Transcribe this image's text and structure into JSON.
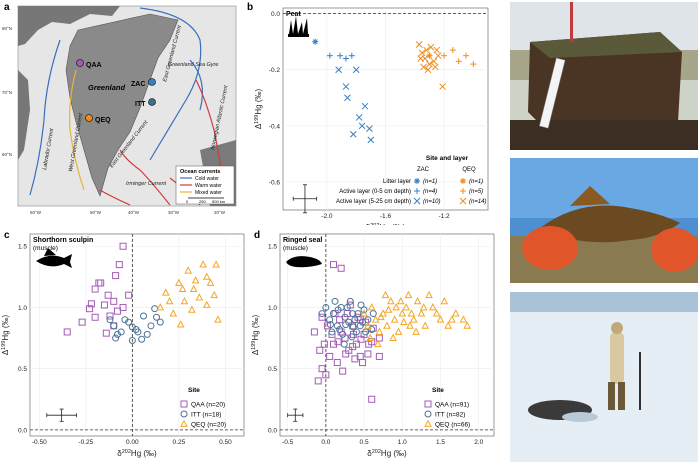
{
  "panel_labels": {
    "a": "a",
    "b": "b",
    "c": "c",
    "d": "d"
  },
  "map": {
    "region": "Greenland",
    "sites": [
      "QAA",
      "ZAC",
      "ITT",
      "QEQ"
    ],
    "currents": [
      "Labrador Current",
      "West Greenland Current",
      "East Greenland Current",
      "East Greenland Current",
      "Irminger Current",
      "Norwegian Atlantic Current",
      "Greenland Sea Gyre"
    ],
    "lat_labels": [
      "80°N",
      "70°N",
      "60°N"
    ],
    "lon_labels": [
      "60°W",
      "50°W",
      "40°W",
      "30°W",
      "20°W"
    ],
    "legend": {
      "title": "Ocean currents",
      "items": [
        "Cold water",
        "Warm water",
        "Mixed water"
      ],
      "scale_labels": [
        "0",
        "250",
        "500 km"
      ]
    }
  },
  "colors": {
    "zac": "#3a7fc4",
    "qeq": "#f08c1c",
    "qaa": "#a45bb8",
    "itt": "#3f6f8f",
    "qeq_tri": "#f5a623",
    "itt_circle": "#4a7296"
  },
  "chart_data": [
    {
      "id": "b",
      "type": "scatter",
      "title": "Peat",
      "xlabel": "δ202Hg (‰)",
      "ylabel": "Δ199Hg (‰)",
      "xlim": [
        -2.3,
        -0.9
      ],
      "ylim": [
        -0.7,
        0.02
      ],
      "xticks": [
        "-2.0",
        "-1.6",
        "-1.2"
      ],
      "yticks": [
        "0.0",
        "-0.2",
        "-0.4",
        "-0.6"
      ],
      "legend_title": "Site and layer",
      "legend_cols": [
        "ZAC",
        "QEQ"
      ],
      "legend_rows": [
        {
          "label": "Litter layer",
          "zac_n": "(n=1)",
          "qeq_n": "(n=1)"
        },
        {
          "label": "Active layer (0-5 cm depth)",
          "zac_n": "(n=4)",
          "qeq_n": "(n=5)"
        },
        {
          "label": "Active layer (5-25 cm depth)",
          "zac_n": "(n=10)",
          "qeq_n": "(n=14)"
        }
      ],
      "series": [
        {
          "name": "ZAC litter",
          "marker": "asterisk",
          "color": "zac",
          "points": [
            [
              -2.08,
              -0.1
            ]
          ]
        },
        {
          "name": "ZAC active 0-5",
          "marker": "plus",
          "color": "zac",
          "points": [
            [
              -1.98,
              -0.15
            ],
            [
              -1.91,
              -0.15
            ],
            [
              -1.87,
              -0.16
            ],
            [
              -1.83,
              -0.15
            ]
          ]
        },
        {
          "name": "ZAC active 5-25",
          "marker": "cross",
          "color": "zac",
          "points": [
            [
              -1.92,
              -0.2
            ],
            [
              -1.8,
              -0.2
            ],
            [
              -1.87,
              -0.26
            ],
            [
              -1.86,
              -0.3
            ],
            [
              -1.74,
              -0.33
            ],
            [
              -1.78,
              -0.37
            ],
            [
              -1.76,
              -0.4
            ],
            [
              -1.71,
              -0.41
            ],
            [
              -1.82,
              -0.43
            ],
            [
              -1.7,
              -0.45
            ]
          ]
        },
        {
          "name": "QEQ litter",
          "marker": "asterisk",
          "color": "qeq",
          "points": [
            [
              -1.3,
              -0.15
            ]
          ]
        },
        {
          "name": "QEQ active 0-5",
          "marker": "plus",
          "color": "qeq",
          "points": [
            [
              -1.14,
              -0.13
            ],
            [
              -1.05,
              -0.15
            ],
            [
              -1.1,
              -0.17
            ],
            [
              -1.0,
              -0.18
            ],
            [
              -1.2,
              -0.15
            ]
          ]
        },
        {
          "name": "QEQ active 5-25",
          "marker": "cross",
          "color": "qeq",
          "points": [
            [
              -1.37,
              -0.11
            ],
            [
              -1.32,
              -0.13
            ],
            [
              -1.29,
              -0.12
            ],
            [
              -1.36,
              -0.16
            ],
            [
              -1.33,
              -0.16
            ],
            [
              -1.3,
              -0.18
            ],
            [
              -1.27,
              -0.17
            ],
            [
              -1.35,
              -0.14
            ],
            [
              -1.25,
              -0.13
            ],
            [
              -1.24,
              -0.15
            ],
            [
              -1.31,
              -0.2
            ],
            [
              -1.26,
              -0.19
            ],
            [
              -1.34,
              -0.19
            ],
            [
              -1.21,
              -0.26
            ]
          ]
        }
      ],
      "errorbar": {
        "x": -2.15,
        "y": -0.66,
        "xerr": 0.08,
        "yerr": 0.05
      }
    },
    {
      "id": "c",
      "type": "scatter",
      "title": "Shorthorn sculpin",
      "subtitle": "(muscle)",
      "xlabel": "δ202Hg (‰)",
      "ylabel": "Δ199Hg (‰)",
      "xlim": [
        -0.55,
        0.6
      ],
      "ylim": [
        -0.05,
        1.6
      ],
      "xticks": [
        "-0.50",
        "-0.25",
        "0.00",
        "0.25",
        "0.50"
      ],
      "yticks": [
        "0.0",
        "0.5",
        "1.0",
        "1.5"
      ],
      "legend_title": "Site",
      "legend_rows": [
        {
          "label": "QAA (n=20)",
          "marker": "square",
          "color": "qaa"
        },
        {
          "label": "ITT (n=18)",
          "marker": "circle",
          "color": "itt_circle"
        },
        {
          "label": "QEQ (n=20)",
          "marker": "triangle",
          "color": "qeq_tri"
        }
      ],
      "series": [
        {
          "name": "QAA",
          "marker": "square",
          "color": "qaa",
          "points": [
            [
              -0.35,
              0.8
            ],
            [
              -0.27,
              0.88
            ],
            [
              -0.22,
              1.03
            ],
            [
              -0.2,
              1.15
            ],
            [
              -0.17,
              1.2
            ],
            [
              -0.15,
              1.02
            ],
            [
              -0.13,
              1.1
            ],
            [
              -0.12,
              0.93
            ],
            [
              -0.1,
              0.85
            ],
            [
              -0.08,
              0.97
            ],
            [
              -0.07,
              1.35
            ],
            [
              -0.05,
              1.5
            ],
            [
              -0.2,
              0.92
            ],
            [
              -0.18,
              1.2
            ],
            [
              -0.1,
              1.05
            ],
            [
              -0.05,
              1.0
            ],
            [
              -0.02,
              1.1
            ],
            [
              -0.14,
              0.79
            ],
            [
              -0.23,
              0.99
            ],
            [
              -0.09,
              1.26
            ]
          ]
        },
        {
          "name": "ITT",
          "marker": "circle",
          "color": "itt_circle",
          "points": [
            [
              -0.12,
              0.9
            ],
            [
              -0.1,
              0.85
            ],
            [
              -0.08,
              0.78
            ],
            [
              -0.06,
              0.8
            ],
            [
              -0.04,
              0.9
            ],
            [
              -0.02,
              0.88
            ],
            [
              0.0,
              0.84
            ],
            [
              0.02,
              0.82
            ],
            [
              0.03,
              0.8
            ],
            [
              0.05,
              0.74
            ],
            [
              0.06,
              0.93
            ],
            [
              0.08,
              0.78
            ],
            [
              0.1,
              0.85
            ],
            [
              0.12,
              0.99
            ],
            [
              0.13,
              0.92
            ],
            [
              -0.09,
              0.75
            ],
            [
              0.0,
              0.73
            ],
            [
              0.15,
              0.88
            ]
          ]
        },
        {
          "name": "QEQ",
          "marker": "triangle",
          "color": "qeq_tri",
          "points": [
            [
              0.15,
              1.0
            ],
            [
              0.18,
              1.12
            ],
            [
              0.2,
              1.05
            ],
            [
              0.22,
              0.95
            ],
            [
              0.25,
              1.2
            ],
            [
              0.27,
              1.15
            ],
            [
              0.28,
              1.05
            ],
            [
              0.3,
              1.3
            ],
            [
              0.32,
              0.98
            ],
            [
              0.34,
              1.22
            ],
            [
              0.36,
              1.08
            ],
            [
              0.38,
              1.35
            ],
            [
              0.4,
              1.25
            ],
            [
              0.42,
              1.2
            ],
            [
              0.44,
              1.1
            ],
            [
              0.45,
              1.35
            ],
            [
              0.46,
              0.9
            ],
            [
              0.33,
              1.15
            ],
            [
              0.26,
              0.86
            ],
            [
              0.4,
              1.02
            ]
          ]
        }
      ],
      "errorbar": {
        "x": -0.38,
        "y": 0.12,
        "xerr": 0.08,
        "yerr": 0.05
      }
    },
    {
      "id": "d",
      "type": "scatter",
      "title": "Ringed seal",
      "subtitle": "(muscle)",
      "xlabel": "δ202Hg (‰)",
      "ylabel": "Δ199Hg (‰)",
      "xlim": [
        -0.6,
        2.2
      ],
      "ylim": [
        -0.05,
        1.6
      ],
      "xticks": [
        "-0.5",
        "0.0",
        "0.5",
        "1.0",
        "1.5",
        "2.0"
      ],
      "yticks": [
        "0.0",
        "0.5",
        "1.0",
        "1.5"
      ],
      "legend_title": "Site",
      "legend_rows": [
        {
          "label": "QAA (n=91)",
          "marker": "square",
          "color": "qaa"
        },
        {
          "label": "ITT (n=82)",
          "marker": "circle",
          "color": "itt_circle"
        },
        {
          "label": "QEQ (n=66)",
          "marker": "triangle",
          "color": "qeq_tri"
        }
      ],
      "series": [
        {
          "name": "QAA",
          "marker": "square",
          "color": "qaa",
          "points": [
            [
              -0.1,
              0.4
            ],
            [
              -0.05,
              0.5
            ],
            [
              0.0,
              0.45
            ],
            [
              0.05,
              0.6
            ],
            [
              -0.08,
              0.65
            ],
            [
              0.1,
              0.7
            ],
            [
              0.15,
              0.55
            ],
            [
              0.2,
              0.8
            ],
            [
              0.25,
              0.75
            ],
            [
              0.3,
              0.65
            ],
            [
              0.35,
              0.85
            ],
            [
              0.4,
              0.7
            ],
            [
              0.45,
              0.9
            ],
            [
              0.5,
              0.78
            ],
            [
              0.55,
              0.62
            ],
            [
              0.6,
              0.72
            ],
            [
              0.18,
              0.9
            ],
            [
              0.28,
              0.95
            ],
            [
              0.38,
              0.58
            ],
            [
              0.48,
              0.55
            ],
            [
              0.22,
              0.48
            ],
            [
              0.12,
              0.95
            ],
            [
              0.02,
              0.85
            ],
            [
              0.32,
              1.02
            ],
            [
              0.42,
              0.92
            ],
            [
              0.52,
              0.88
            ],
            [
              0.62,
              0.83
            ],
            [
              0.7,
              0.75
            ],
            [
              0.2,
              1.32
            ],
            [
              0.1,
              1.35
            ],
            [
              0.6,
              0.25
            ],
            [
              0.7,
              0.6
            ],
            [
              0.35,
              0.68
            ],
            [
              0.45,
              0.6
            ],
            [
              -0.02,
              0.7
            ],
            [
              0.08,
              0.78
            ],
            [
              0.16,
              0.72
            ],
            [
              0.26,
              0.62
            ],
            [
              0.36,
              0.78
            ],
            [
              0.46,
              0.74
            ],
            [
              0.56,
              0.7
            ],
            [
              -0.15,
              0.8
            ],
            [
              -0.05,
              0.92
            ]
          ]
        },
        {
          "name": "ITT",
          "marker": "circle",
          "color": "itt_circle",
          "points": [
            [
              0.05,
              0.9
            ],
            [
              0.1,
              0.95
            ],
            [
              0.15,
              0.85
            ],
            [
              0.2,
              1.0
            ],
            [
              0.25,
              0.92
            ],
            [
              0.3,
              0.88
            ],
            [
              0.35,
              0.95
            ],
            [
              0.4,
              0.8
            ],
            [
              0.45,
              0.85
            ],
            [
              0.5,
              0.98
            ],
            [
              0.55,
              0.9
            ],
            [
              0.6,
              0.82
            ],
            [
              0.12,
              1.05
            ],
            [
              0.22,
              0.78
            ],
            [
              0.32,
              1.05
            ],
            [
              0.42,
              0.95
            ],
            [
              0.52,
              0.8
            ],
            [
              0.18,
              0.82
            ],
            [
              0.28,
              1.0
            ],
            [
              0.38,
              0.9
            ],
            [
              0.48,
              0.88
            ],
            [
              0.08,
              0.8
            ],
            [
              -0.05,
              0.95
            ],
            [
              0.0,
              1.0
            ],
            [
              0.62,
              0.95
            ],
            [
              0.26,
              0.86
            ],
            [
              0.36,
              0.84
            ],
            [
              0.46,
              1.02
            ],
            [
              0.16,
              0.98
            ],
            [
              0.06,
              0.86
            ],
            [
              0.34,
              0.76
            ],
            [
              0.24,
              0.7
            ]
          ]
        },
        {
          "name": "QEQ",
          "marker": "triangle",
          "color": "qeq_tri",
          "points": [
            [
              0.5,
              0.95
            ],
            [
              0.55,
              0.85
            ],
            [
              0.6,
              1.0
            ],
            [
              0.65,
              0.9
            ],
            [
              0.7,
              0.8
            ],
            [
              0.75,
              0.95
            ],
            [
              0.8,
              0.85
            ],
            [
              0.85,
              1.05
            ],
            [
              0.9,
              0.9
            ],
            [
              0.95,
              0.8
            ],
            [
              1.0,
              0.95
            ],
            [
              1.05,
              1.0
            ],
            [
              1.1,
              0.85
            ],
            [
              1.15,
              0.9
            ],
            [
              1.2,
              1.05
            ],
            [
              1.25,
              0.95
            ],
            [
              1.3,
              0.85
            ],
            [
              1.4,
              1.0
            ],
            [
              1.5,
              0.9
            ],
            [
              1.6,
              0.85
            ],
            [
              1.7,
              0.95
            ],
            [
              1.8,
              0.9
            ],
            [
              1.85,
              0.85
            ],
            [
              0.58,
              0.75
            ],
            [
              0.68,
              0.7
            ],
            [
              0.78,
              1.1
            ],
            [
              0.88,
              0.75
            ],
            [
              0.98,
              1.05
            ],
            [
              1.08,
              1.1
            ],
            [
              1.18,
              0.8
            ],
            [
              1.35,
              1.1
            ],
            [
              1.45,
              0.95
            ],
            [
              1.55,
              1.05
            ],
            [
              1.65,
              0.9
            ],
            [
              0.72,
              0.92
            ],
            [
              0.82,
              0.98
            ],
            [
              0.92,
              1.0
            ],
            [
              1.02,
              0.88
            ],
            [
              1.12,
              0.95
            ],
            [
              1.28,
              1.0
            ]
          ]
        }
      ],
      "errorbar": {
        "x": -0.4,
        "y": 0.12,
        "xerr": 0.1,
        "yerr": 0.05
      }
    }
  ]
}
